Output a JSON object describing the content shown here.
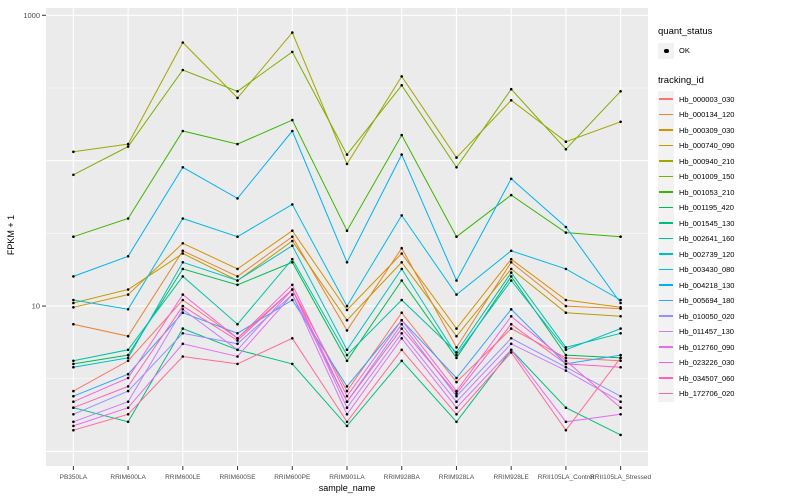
{
  "legend": {
    "quant_status": {
      "title": "quant_status",
      "items": [
        {
          "label": "OK",
          "key": "black-point"
        }
      ]
    },
    "tracking_id_title": "tracking_id"
  },
  "colors": {
    "panel_bg": "#EBEBEB",
    "grid": "#FFFFFF",
    "point": "#000000",
    "tick_text": "#4D4D4D",
    "tick_mark": "#333333"
  },
  "chart_data": {
    "type": "line",
    "title": "",
    "xlabel": "sample_name",
    "ylabel": "FPKM + 1",
    "y_scale": "log10",
    "ylim": [
      1,
      1000
    ],
    "grid": true,
    "legend_position": "right",
    "y_ticks": [
      {
        "label": "1000",
        "value": 1000
      },
      {
        "label": "10",
        "value": 10
      }
    ],
    "categories": [
      "PB350LA",
      "RRIM600LA",
      "RRIM600LE",
      "RRIM600SE",
      "RRIM600PE",
      "RRIM901LA",
      "RRIM928BA",
      "RRIM928LA",
      "RRIM928LE",
      "RRII105LA_Control",
      "RRII105LA_Stressed"
    ],
    "series": [
      {
        "name": "Hb_000003_030",
        "color": "#F8766D",
        "values": [
          2.6,
          4.2,
          11,
          6.0,
          13,
          2.6,
          9.0,
          3.0,
          7.0,
          4.4,
          4.2
        ]
      },
      {
        "name": "Hb_000134_120",
        "color": "#EA8331",
        "values": [
          7.5,
          6.2,
          24,
          16,
          30,
          6.8,
          25,
          5.2,
          20,
          10,
          9.6
        ]
      },
      {
        "name": "Hb_000309_030",
        "color": "#D89000",
        "values": [
          9.8,
          12,
          27,
          18,
          33,
          9.4,
          23,
          7.0,
          21,
          11,
          9.8
        ]
      },
      {
        "name": "Hb_000740_090",
        "color": "#C09B00",
        "values": [
          10.5,
          13,
          23,
          15,
          28,
          8.0,
          20,
          6.2,
          18,
          9.0,
          8.5
        ]
      },
      {
        "name": "Hb_000940_210",
        "color": "#A3A500",
        "values": [
          115,
          130,
          650,
          270,
          760,
          95,
          380,
          105,
          260,
          135,
          185
        ]
      },
      {
        "name": "Hb_001009_150",
        "color": "#7CAE00",
        "values": [
          80,
          125,
          420,
          300,
          560,
          110,
          330,
          90,
          310,
          120,
          300
        ]
      },
      {
        "name": "Hb_001053_210",
        "color": "#39B600",
        "values": [
          30,
          40,
          160,
          130,
          190,
          33,
          150,
          30,
          58,
          32,
          30
        ]
      },
      {
        "name": "Hb_001195_420",
        "color": "#00BB4E",
        "values": [
          4.0,
          4.6,
          18,
          14,
          20,
          4.2,
          15,
          4.4,
          16,
          4.6,
          4.4
        ]
      },
      {
        "name": "Hb_001545_130",
        "color": "#00BF7D",
        "values": [
          2.0,
          1.6,
          7.0,
          5.0,
          4.0,
          1.5,
          4.2,
          1.6,
          5.0,
          2.0,
          1.3
        ]
      },
      {
        "name": "Hb_002641_160",
        "color": "#00C1A3",
        "values": [
          4.2,
          5.0,
          16,
          7.5,
          21,
          4.6,
          11,
          4.8,
          17,
          5.2,
          6.5
        ]
      },
      {
        "name": "Hb_002739_120",
        "color": "#00BFC4",
        "values": [
          3.8,
          4.4,
          20,
          15,
          26,
          5.0,
          18,
          4.6,
          15,
          5.0,
          7.0
        ]
      },
      {
        "name": "Hb_003430_080",
        "color": "#00BAE0",
        "values": [
          11,
          9.5,
          40,
          30,
          50,
          10,
          42,
          12,
          24,
          18,
          11
        ]
      },
      {
        "name": "Hb_004218_130",
        "color": "#00B0F6",
        "values": [
          16,
          22,
          90,
          55,
          160,
          20,
          110,
          15,
          75,
          35,
          10.5
        ]
      },
      {
        "name": "Hb_005694_180",
        "color": "#35A2FF",
        "values": [
          2.4,
          3.4,
          9.0,
          6.5,
          11,
          2.8,
          8.0,
          3.2,
          9.5,
          4.0,
          4.6
        ]
      },
      {
        "name": "Hb_010050_020",
        "color": "#9590FF",
        "values": [
          1.8,
          2.6,
          6.5,
          5.5,
          12,
          2.2,
          7.5,
          2.4,
          6.0,
          3.8,
          2.4
        ]
      },
      {
        "name": "Hb_011457_130",
        "color": "#C77CFF",
        "values": [
          1.6,
          2.2,
          9.5,
          5.0,
          13,
          2.0,
          6.5,
          2.2,
          5.5,
          3.6,
          2.2
        ]
      },
      {
        "name": "Hb_012760_090",
        "color": "#E76BF3",
        "values": [
          1.5,
          2.0,
          5.5,
          4.5,
          12,
          1.8,
          6.0,
          2.0,
          5.0,
          1.6,
          1.8
        ]
      },
      {
        "name": "Hb_023226_030",
        "color": "#FA62DB",
        "values": [
          2.2,
          3.2,
          12,
          6.0,
          14,
          2.4,
          8.0,
          2.6,
          8.5,
          4.2,
          2.0
        ]
      },
      {
        "name": "Hb_034507_060",
        "color": "#FF62BC",
        "values": [
          2.0,
          2.8,
          10,
          5.8,
          13,
          2.2,
          7.0,
          2.5,
          7.5,
          4.0,
          3.8
        ]
      },
      {
        "name": "Hb_172706_020",
        "color": "#FF6A98",
        "values": [
          1.4,
          1.8,
          4.5,
          4.0,
          6.0,
          1.6,
          5.0,
          1.8,
          4.8,
          1.4,
          4.4
        ]
      }
    ]
  }
}
